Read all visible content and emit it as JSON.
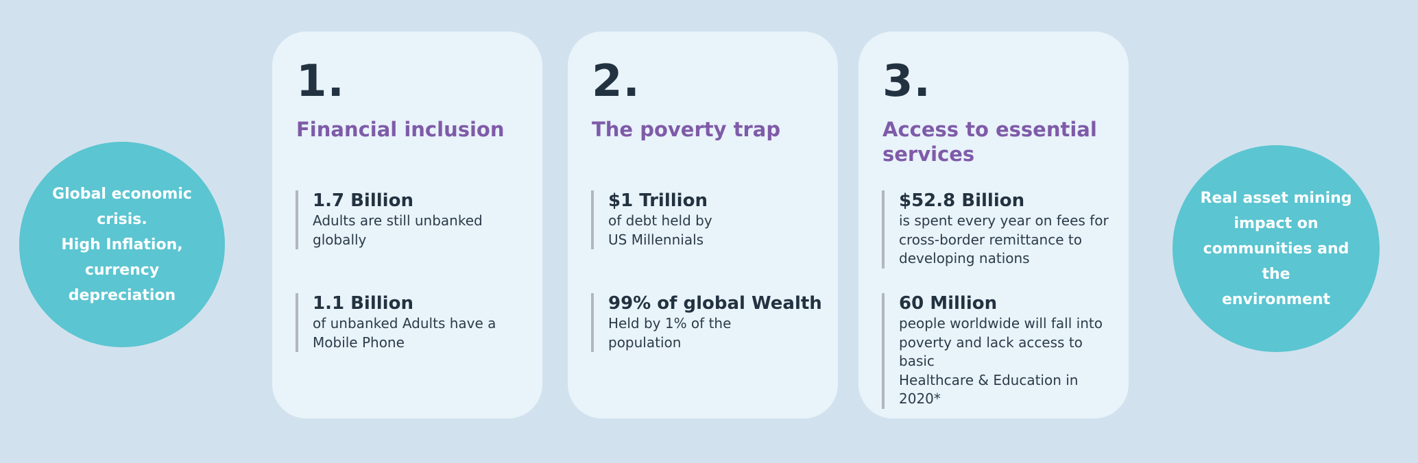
{
  "colors": {
    "background": "#d1e2ee",
    "card_background": "#e9f3fa",
    "circle_teal": "#5bc5d1",
    "heading_purple": "#7e5ba8",
    "text_dark": "#233240",
    "accent_bar_gray": "#b1b7bc"
  },
  "left_circle": {
    "text": "Global economic\ncrisis.\nHigh Inflation,\ncurrency\ndepreciation"
  },
  "right_circle": {
    "text": "Real asset  mining\nimpact on\ncommunities and the\nenvironment"
  },
  "cards": [
    {
      "number": "1.",
      "heading": "Financial inclusion",
      "stats": [
        {
          "value": "1.7 Billion",
          "description": "Adults are still unbanked\nglobally"
        },
        {
          "value": "1.1 Billion",
          "description": "of unbanked Adults have a\nMobile Phone"
        }
      ]
    },
    {
      "number": "2.",
      "heading": "The poverty trap",
      "stats": [
        {
          "value": "$1 Trillion",
          "description": "of debt held by\nUS Millennials"
        },
        {
          "value": "99% of global Wealth",
          "description": "Held by 1% of the\npopulation"
        }
      ]
    },
    {
      "number": "3.",
      "heading": "Access to essential\nservices",
      "stats": [
        {
          "value": "$52.8 Billion",
          "description": "is spent every year on fees for\ncross-border remittance to\ndeveloping nations"
        },
        {
          "value": "60 Million",
          "description": "people worldwide will fall into\npoverty and lack access to basic\nHealthcare & Education in 2020*"
        }
      ]
    }
  ]
}
